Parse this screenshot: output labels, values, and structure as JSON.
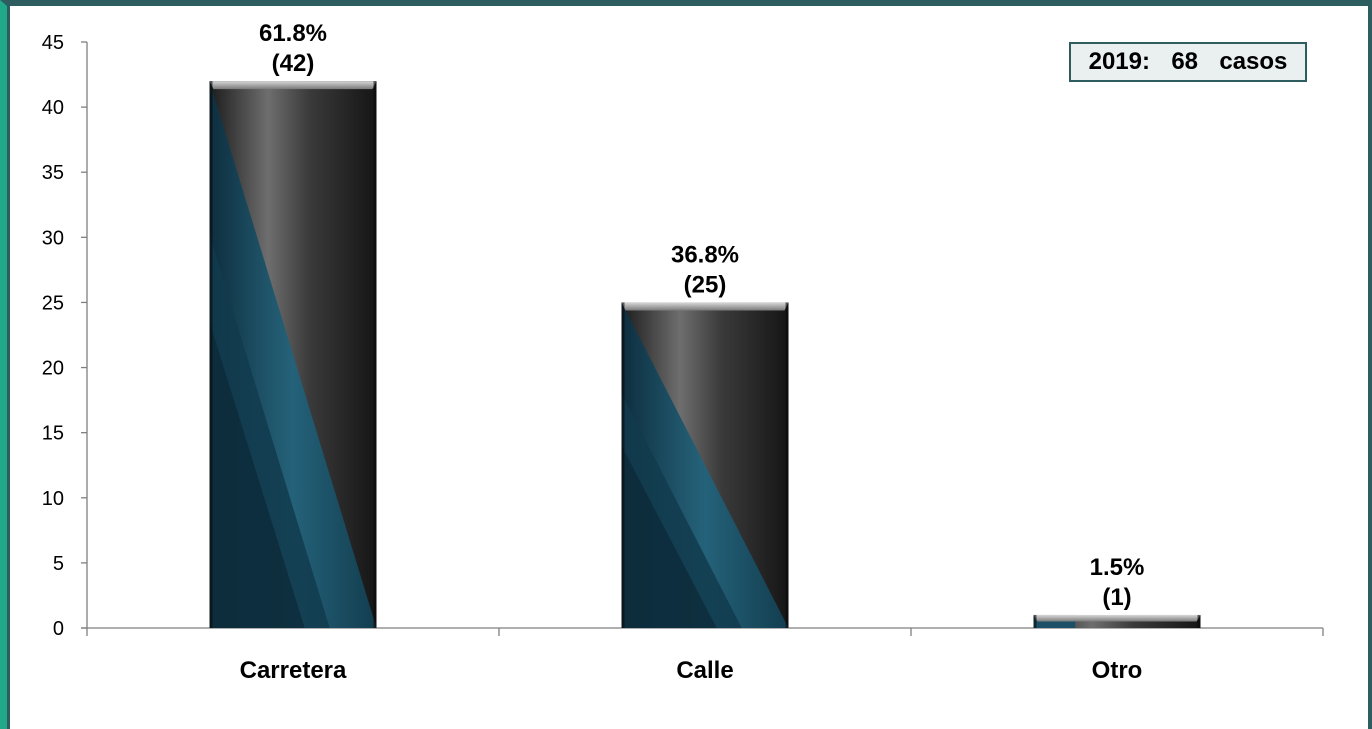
{
  "chart_data": {
    "type": "bar",
    "categories": [
      "Carretera",
      "Calle",
      "Otro"
    ],
    "values": [
      42,
      25,
      1
    ],
    "data_labels": [
      {
        "percent": "61.8%",
        "count": "(42)"
      },
      {
        "percent": "36.8%",
        "count": "(25)"
      },
      {
        "percent": "1.5%",
        "count": "(1)"
      }
    ],
    "annotation": "2019:  68  casos",
    "ylim": [
      0,
      45
    ],
    "yticks": [
      0,
      5,
      10,
      15,
      20,
      25,
      30,
      35,
      40,
      45
    ],
    "grid": false,
    "colors": {
      "frame": "#2e5d5f",
      "frame_accent": "#1fa88a",
      "bar_light": "#9a9a9a",
      "bar_dark": "#2a2a2a",
      "bar_blue": "#1f5f78",
      "bar_blue_dark": "#0f3346"
    }
  }
}
